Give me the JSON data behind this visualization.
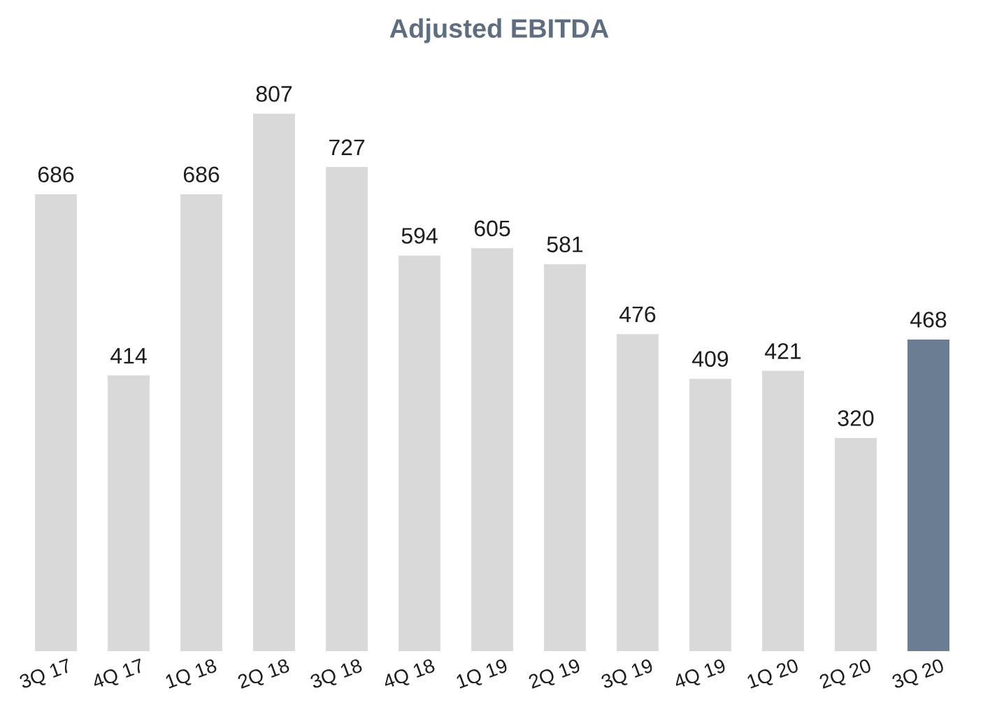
{
  "chart_data": {
    "type": "bar",
    "title": "Adjusted EBITDA",
    "categories": [
      "3Q 17",
      "4Q 17",
      "1Q 18",
      "2Q 18",
      "3Q 18",
      "4Q 18",
      "1Q 19",
      "2Q 19",
      "3Q 19",
      "4Q 19",
      "1Q 20",
      "2Q 20",
      "3Q 20"
    ],
    "values": [
      686,
      414,
      686,
      807,
      727,
      594,
      605,
      581,
      476,
      409,
      421,
      320,
      468
    ],
    "colors": [
      "#d9d9d9",
      "#d9d9d9",
      "#d9d9d9",
      "#d9d9d9",
      "#d9d9d9",
      "#d9d9d9",
      "#d9d9d9",
      "#d9d9d9",
      "#d9d9d9",
      "#d9d9d9",
      "#d9d9d9",
      "#d9d9d9",
      "#6a7d92"
    ],
    "data_labels": true
  }
}
